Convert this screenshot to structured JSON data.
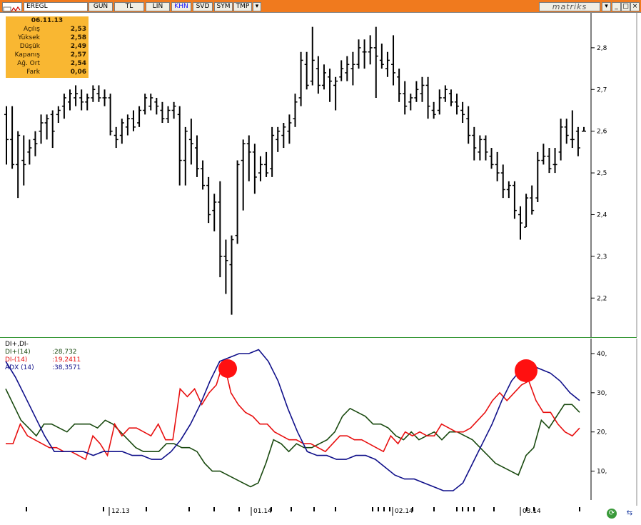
{
  "toolbar": {
    "symbol": "EREGL",
    "buttons": [
      "GUN",
      "TL",
      "LIN",
      "KHN",
      "SVD",
      "SYM",
      "TMP"
    ],
    "active": "KHN",
    "brand": "matriks"
  },
  "info": {
    "date": "06.11.13",
    "rows": [
      {
        "label": "Açılış",
        "value": "2,53"
      },
      {
        "label": "Yüksek",
        "value": "2,58"
      },
      {
        "label": "Düşük",
        "value": "2,49"
      },
      {
        "label": "Kapanış",
        "value": "2,57"
      },
      {
        "label": "Ağ. Ort",
        "value": "2,54"
      },
      {
        "label": "Fark",
        "value": "0,06"
      }
    ]
  },
  "indicator": {
    "title": "DI+,DI-",
    "lines": [
      {
        "name": "DI+(14)",
        "value": ":28,732",
        "color": "#1a4a10"
      },
      {
        "name": "DI-(14)",
        "value": ":19,2411",
        "color": "#e81010"
      },
      {
        "name": "ADX (14)",
        "value": ":38,3571",
        "color": "#10108a"
      }
    ]
  },
  "chart_data": [
    {
      "type": "ohlc",
      "y_ticks": [
        "2,8",
        "2,7",
        "2,6",
        "2,5",
        "2,4",
        "2,3",
        "2,2"
      ],
      "ylim": [
        2.12,
        2.87
      ],
      "bars": [
        [
          2.64,
          2.66,
          2.52,
          2.58
        ],
        [
          2.58,
          2.66,
          2.51,
          2.52
        ],
        [
          2.52,
          2.6,
          2.44,
          2.59
        ],
        [
          2.53,
          2.59,
          2.47,
          2.52
        ],
        [
          2.55,
          2.58,
          2.52,
          2.56
        ],
        [
          2.58,
          2.6,
          2.54,
          2.57
        ],
        [
          2.6,
          2.64,
          2.57,
          2.62
        ],
        [
          2.62,
          2.64,
          2.58,
          2.63
        ],
        [
          2.64,
          2.65,
          2.56,
          2.6
        ],
        [
          2.64,
          2.66,
          2.62,
          2.65
        ],
        [
          2.66,
          2.69,
          2.63,
          2.68
        ],
        [
          2.67,
          2.7,
          2.65,
          2.69
        ],
        [
          2.68,
          2.71,
          2.66,
          2.69
        ],
        [
          2.68,
          2.7,
          2.65,
          2.67
        ],
        [
          2.67,
          2.69,
          2.65,
          2.68
        ],
        [
          2.68,
          2.71,
          2.67,
          2.7
        ],
        [
          2.69,
          2.71,
          2.67,
          2.68
        ],
        [
          2.68,
          2.7,
          2.66,
          2.68
        ],
        [
          2.68,
          2.69,
          2.59,
          2.6
        ],
        [
          2.59,
          2.61,
          2.56,
          2.58
        ],
        [
          2.59,
          2.63,
          2.57,
          2.62
        ],
        [
          2.61,
          2.64,
          2.59,
          2.63
        ],
        [
          2.63,
          2.65,
          2.6,
          2.61
        ],
        [
          2.62,
          2.66,
          2.61,
          2.65
        ],
        [
          2.65,
          2.69,
          2.64,
          2.68
        ],
        [
          2.66,
          2.69,
          2.65,
          2.68
        ],
        [
          2.67,
          2.68,
          2.64,
          2.66
        ],
        [
          2.65,
          2.67,
          2.62,
          2.63
        ],
        [
          2.63,
          2.66,
          2.62,
          2.65
        ],
        [
          2.65,
          2.67,
          2.63,
          2.66
        ],
        [
          2.64,
          2.66,
          2.47,
          2.53
        ],
        [
          2.53,
          2.61,
          2.47,
          2.6
        ],
        [
          2.58,
          2.63,
          2.52,
          2.57
        ],
        [
          2.56,
          2.59,
          2.49,
          2.51
        ],
        [
          2.51,
          2.53,
          2.46,
          2.47
        ],
        [
          2.47,
          2.49,
          2.38,
          2.4
        ],
        [
          2.41,
          2.45,
          2.36,
          2.43
        ],
        [
          2.43,
          2.48,
          2.25,
          2.3
        ],
        [
          2.3,
          2.34,
          2.21,
          2.29
        ],
        [
          2.28,
          2.35,
          2.16,
          2.34
        ],
        [
          2.35,
          2.53,
          2.33,
          2.52
        ],
        [
          2.53,
          2.58,
          2.41,
          2.57
        ],
        [
          2.57,
          2.59,
          2.48,
          2.55
        ],
        [
          2.55,
          2.57,
          2.45,
          2.49
        ],
        [
          2.5,
          2.54,
          2.48,
          2.52
        ],
        [
          2.52,
          2.55,
          2.49,
          2.5
        ],
        [
          2.51,
          2.61,
          2.49,
          2.59
        ],
        [
          2.58,
          2.61,
          2.55,
          2.6
        ],
        [
          2.59,
          2.62,
          2.56,
          2.61
        ],
        [
          2.6,
          2.64,
          2.57,
          2.62
        ],
        [
          2.63,
          2.69,
          2.61,
          2.67
        ],
        [
          2.68,
          2.79,
          2.66,
          2.77
        ],
        [
          2.76,
          2.79,
          2.7,
          2.71
        ],
        [
          2.72,
          2.85,
          2.71,
          2.77
        ],
        [
          2.75,
          2.78,
          2.69,
          2.71
        ],
        [
          2.71,
          2.76,
          2.7,
          2.74
        ],
        [
          2.73,
          2.75,
          2.67,
          2.72
        ],
        [
          2.71,
          2.73,
          2.65,
          2.72
        ],
        [
          2.73,
          2.77,
          2.72,
          2.75
        ],
        [
          2.74,
          2.78,
          2.72,
          2.76
        ],
        [
          2.75,
          2.79,
          2.71,
          2.76
        ],
        [
          2.76,
          2.82,
          2.75,
          2.8
        ],
        [
          2.79,
          2.82,
          2.75,
          2.79
        ],
        [
          2.79,
          2.83,
          2.76,
          2.8
        ],
        [
          2.8,
          2.85,
          2.68,
          2.78
        ],
        [
          2.77,
          2.81,
          2.75,
          2.76
        ],
        [
          2.75,
          2.79,
          2.73,
          2.77
        ],
        [
          2.76,
          2.83,
          2.71,
          2.74
        ],
        [
          2.73,
          2.75,
          2.67,
          2.69
        ],
        [
          2.69,
          2.72,
          2.64,
          2.66
        ],
        [
          2.67,
          2.69,
          2.65,
          2.68
        ],
        [
          2.68,
          2.72,
          2.67,
          2.7
        ],
        [
          2.69,
          2.73,
          2.67,
          2.71
        ],
        [
          2.71,
          2.73,
          2.63,
          2.66
        ],
        [
          2.65,
          2.67,
          2.63,
          2.64
        ],
        [
          2.65,
          2.7,
          2.64,
          2.68
        ],
        [
          2.68,
          2.71,
          2.67,
          2.7
        ],
        [
          2.69,
          2.7,
          2.66,
          2.67
        ],
        [
          2.67,
          2.69,
          2.64,
          2.66
        ],
        [
          2.65,
          2.67,
          2.62,
          2.64
        ],
        [
          2.63,
          2.66,
          2.57,
          2.59
        ],
        [
          2.59,
          2.61,
          2.53,
          2.56
        ],
        [
          2.55,
          2.59,
          2.53,
          2.58
        ],
        [
          2.58,
          2.59,
          2.53,
          2.55
        ],
        [
          2.54,
          2.56,
          2.51,
          2.52
        ],
        [
          2.52,
          2.55,
          2.48,
          2.5
        ],
        [
          2.5,
          2.52,
          2.44,
          2.46
        ],
        [
          2.46,
          2.48,
          2.44,
          2.47
        ],
        [
          2.47,
          2.48,
          2.39,
          2.41
        ],
        [
          2.4,
          2.42,
          2.34,
          2.38
        ],
        [
          2.37,
          2.45,
          2.37,
          2.44
        ],
        [
          2.44,
          2.47,
          2.4,
          2.41
        ],
        [
          2.44,
          2.55,
          2.43,
          2.53
        ],
        [
          2.53,
          2.57,
          2.52,
          2.54
        ],
        [
          2.54,
          2.56,
          2.5,
          2.51
        ],
        [
          2.52,
          2.56,
          2.5,
          2.52
        ],
        [
          2.55,
          2.63,
          2.53,
          2.61
        ],
        [
          2.61,
          2.63,
          2.57,
          2.59
        ],
        [
          2.58,
          2.65,
          2.56,
          2.58
        ],
        [
          2.6,
          2.61,
          2.54,
          2.56
        ],
        [
          2.6,
          2.61,
          2.6,
          2.6
        ]
      ]
    },
    {
      "type": "line",
      "y_ticks": [
        "40,",
        "30,",
        "20,",
        "10,"
      ],
      "ylim": [
        3,
        42
      ],
      "series": [
        {
          "name": "DI+(14)",
          "color": "#1a4a10",
          "values": [
            31,
            27,
            23,
            21,
            19,
            22,
            22,
            21,
            20,
            22,
            22,
            22,
            21,
            23,
            22,
            20,
            18,
            16,
            15,
            15,
            15,
            17,
            17,
            16,
            16,
            15,
            12,
            10,
            10,
            9,
            8,
            7,
            6,
            7,
            12,
            18,
            17,
            15,
            17,
            16,
            16,
            17,
            18,
            20,
            24,
            26,
            25,
            24,
            22,
            22,
            21,
            19,
            18,
            20,
            18,
            19,
            20,
            18,
            20,
            20,
            19,
            18,
            16,
            14,
            12,
            11,
            10,
            9,
            14,
            16,
            23,
            21,
            24,
            27,
            27,
            25
          ]
        },
        {
          "name": "DI-(14)",
          "color": "#e81010",
          "values": [
            17,
            17,
            22,
            19,
            18,
            17,
            16,
            16,
            15,
            15,
            14,
            13,
            19,
            17,
            14,
            22,
            19,
            21,
            21,
            20,
            19,
            22,
            18,
            18,
            31,
            29,
            31,
            27,
            30,
            32,
            38,
            30,
            27,
            25,
            24,
            22,
            22,
            20,
            19,
            18,
            18,
            17,
            17,
            16,
            15,
            17,
            19,
            19,
            18,
            18,
            17,
            16,
            15,
            19,
            17,
            20,
            19,
            20,
            19,
            19,
            22,
            21,
            20,
            20,
            21,
            23,
            25,
            28,
            30,
            28,
            30,
            32,
            33,
            28,
            25,
            25,
            22,
            20,
            19,
            21
          ]
        },
        {
          "name": "ADX (14)",
          "color": "#10108a",
          "values": [
            38,
            34,
            29,
            24,
            19,
            15,
            15,
            15,
            15,
            14,
            15,
            15,
            15,
            14,
            14,
            13,
            13,
            15,
            18,
            22,
            27,
            33,
            38,
            39,
            40,
            40,
            41,
            38,
            33,
            26,
            20,
            15,
            14,
            14,
            13,
            13,
            14,
            14,
            13,
            11,
            9,
            8,
            8,
            7,
            6,
            5,
            5,
            7,
            12,
            17,
            22,
            28,
            33,
            36,
            37,
            36,
            35,
            33,
            30,
            28
          ]
        }
      ]
    }
  ],
  "x_labels": [
    "12.13",
    "01.14",
    "02.14",
    "03.14"
  ]
}
